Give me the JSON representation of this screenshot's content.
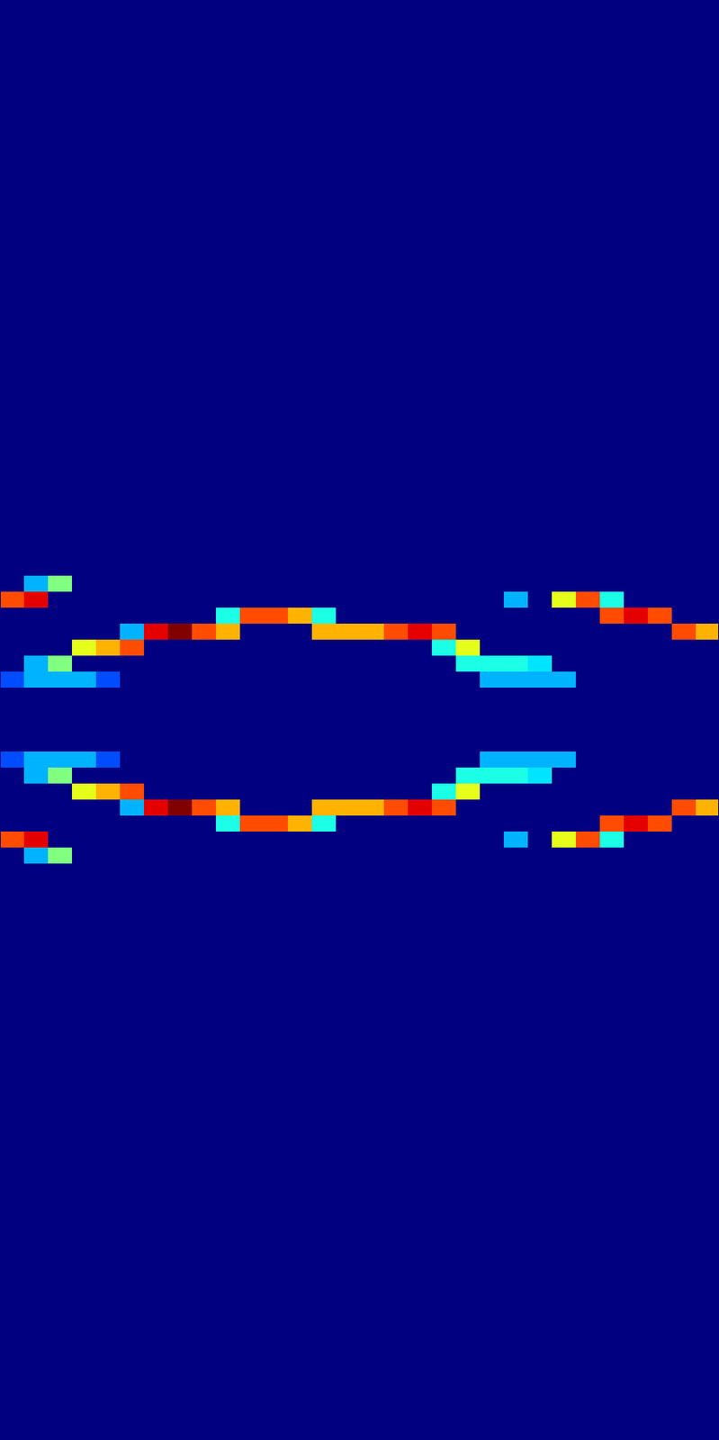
{
  "chart_data": {
    "type": "heatmap",
    "xlim": [
      0,
      899
    ],
    "ylim": [
      0,
      1801
    ],
    "zlim": [
      0,
      1
    ],
    "tick_labels": false,
    "x_bins": [
      0,
      30,
      60,
      90,
      120,
      150,
      180,
      210,
      240,
      270,
      300,
      330,
      360,
      390,
      420,
      450,
      480,
      510,
      540,
      570,
      600,
      630,
      660,
      690,
      720,
      750,
      780,
      810,
      840,
      870,
      899
    ],
    "y_bins": [
      0,
      700,
      720,
      740,
      760,
      780,
      800,
      820,
      840,
      860,
      880,
      900,
      920,
      940,
      960,
      980,
      1000,
      1020,
      1040,
      1060,
      1080,
      1100,
      1801
    ],
    "z": [
      [
        0,
        0,
        0,
        0,
        0,
        0,
        0,
        0,
        0,
        0,
        0,
        0,
        0,
        0,
        0,
        0,
        0,
        0,
        0,
        0,
        0,
        0,
        0,
        0,
        0,
        0,
        0,
        0,
        0,
        0
      ],
      [
        0,
        0,
        0,
        0,
        0,
        0,
        0,
        0,
        0,
        0,
        0,
        0,
        0,
        0,
        0,
        0,
        0,
        0,
        0,
        0,
        0,
        0,
        0,
        0,
        0,
        0,
        0,
        0,
        0,
        0
      ],
      [
        0,
        0.3,
        0.5,
        0,
        0,
        0,
        0,
        0,
        0,
        0,
        0,
        0,
        0,
        0,
        0,
        0,
        0,
        0,
        0,
        0,
        0,
        0,
        0,
        0,
        0,
        0,
        0,
        0,
        0,
        0
      ],
      [
        0.8,
        0.9,
        0,
        0,
        0,
        0,
        0,
        0,
        0,
        0,
        0,
        0,
        0,
        0,
        0,
        0,
        0,
        0,
        0,
        0,
        0,
        0.3,
        0,
        0.6,
        0.8,
        0.4,
        0,
        0,
        0,
        0
      ],
      [
        0,
        0,
        0,
        0,
        0,
        0,
        0,
        0,
        0,
        0.4,
        0.8,
        0.8,
        0.7,
        0.4,
        0,
        0,
        0,
        0,
        0,
        0,
        0,
        0,
        0,
        0,
        0,
        0.8,
        0.9,
        0.8,
        0,
        0
      ],
      [
        0,
        0,
        0,
        0,
        0,
        0.3,
        0.9,
        1,
        0.8,
        0.7,
        0,
        0,
        0,
        0.7,
        0.7,
        0.7,
        0.8,
        0.9,
        0.8,
        0,
        0,
        0,
        0,
        0,
        0,
        0,
        0,
        0,
        0.8,
        0.7
      ],
      [
        0,
        0,
        0,
        0.6,
        0.7,
        0.8,
        0,
        0,
        0,
        0,
        0,
        0,
        0,
        0,
        0,
        0,
        0,
        0,
        0.4,
        0.6,
        0,
        0,
        0,
        0,
        0,
        0,
        0,
        0,
        0,
        0
      ],
      [
        0,
        0.3,
        0.5,
        0,
        0,
        0,
        0,
        0,
        0,
        0,
        0,
        0,
        0,
        0,
        0,
        0,
        0,
        0,
        0,
        0.4,
        0.4,
        0.4,
        0.35,
        0,
        0,
        0,
        0,
        0,
        0,
        0
      ],
      [
        0.2,
        0.3,
        0.3,
        0.3,
        0.2,
        0,
        0,
        0,
        0,
        0,
        0,
        0,
        0,
        0,
        0,
        0,
        0,
        0,
        0,
        0,
        0.3,
        0.3,
        0.3,
        0.3,
        0,
        0,
        0,
        0,
        0,
        0
      ],
      [
        0,
        0,
        0,
        0,
        0,
        0,
        0,
        0,
        0,
        0,
        0,
        0,
        0,
        0,
        0,
        0,
        0,
        0,
        0,
        0,
        0,
        0,
        0,
        0,
        0,
        0,
        0,
        0,
        0,
        0
      ],
      [
        0,
        0,
        0,
        0,
        0,
        0,
        0,
        0,
        0,
        0,
        0,
        0,
        0,
        0,
        0,
        0,
        0,
        0,
        0,
        0,
        0,
        0,
        0,
        0,
        0,
        0,
        0,
        0,
        0,
        0
      ],
      [
        0,
        0,
        0,
        0,
        0,
        0,
        0,
        0,
        0,
        0,
        0,
        0,
        0,
        0,
        0,
        0,
        0,
        0,
        0,
        0,
        0,
        0,
        0,
        0,
        0,
        0,
        0,
        0,
        0,
        0
      ],
      [
        0,
        0,
        0,
        0,
        0,
        0,
        0,
        0,
        0,
        0,
        0,
        0,
        0,
        0,
        0,
        0,
        0,
        0,
        0,
        0,
        0,
        0,
        0,
        0,
        0,
        0,
        0,
        0,
        0,
        0
      ],
      [
        0.2,
        0.3,
        0.3,
        0.3,
        0.2,
        0,
        0,
        0,
        0,
        0,
        0,
        0,
        0,
        0,
        0,
        0,
        0,
        0,
        0,
        0,
        0.3,
        0.3,
        0.3,
        0.3,
        0,
        0,
        0,
        0,
        0,
        0
      ],
      [
        0,
        0.3,
        0.5,
        0,
        0,
        0,
        0,
        0,
        0,
        0,
        0,
        0,
        0,
        0,
        0,
        0,
        0,
        0,
        0,
        0.4,
        0.4,
        0.4,
        0.35,
        0,
        0,
        0,
        0,
        0,
        0,
        0
      ],
      [
        0,
        0,
        0,
        0.6,
        0.7,
        0.8,
        0,
        0,
        0,
        0,
        0,
        0,
        0,
        0,
        0,
        0,
        0,
        0,
        0.4,
        0.6,
        0,
        0,
        0,
        0,
        0,
        0,
        0,
        0,
        0,
        0
      ],
      [
        0,
        0,
        0,
        0,
        0,
        0.3,
        0.9,
        1,
        0.8,
        0.7,
        0,
        0,
        0,
        0.7,
        0.7,
        0.7,
        0.8,
        0.9,
        0.8,
        0,
        0,
        0,
        0,
        0,
        0,
        0,
        0,
        0,
        0.8,
        0.7
      ],
      [
        0,
        0,
        0,
        0,
        0,
        0,
        0,
        0,
        0,
        0.4,
        0.8,
        0.8,
        0.7,
        0.4,
        0,
        0,
        0,
        0,
        0,
        0,
        0,
        0,
        0,
        0,
        0,
        0.8,
        0.9,
        0.8,
        0,
        0
      ],
      [
        0.8,
        0.9,
        0,
        0,
        0,
        0,
        0,
        0,
        0,
        0,
        0,
        0,
        0,
        0,
        0,
        0,
        0,
        0,
        0,
        0,
        0,
        0.3,
        0,
        0.6,
        0.8,
        0.4,
        0,
        0,
        0,
        0
      ],
      [
        0,
        0.3,
        0.5,
        0,
        0,
        0,
        0,
        0,
        0,
        0,
        0,
        0,
        0,
        0,
        0,
        0,
        0,
        0,
        0,
        0,
        0,
        0,
        0,
        0,
        0,
        0,
        0,
        0,
        0,
        0
      ],
      [
        0,
        0,
        0,
        0,
        0,
        0,
        0,
        0,
        0,
        0,
        0,
        0,
        0,
        0,
        0,
        0,
        0,
        0,
        0,
        0,
        0,
        0,
        0,
        0,
        0,
        0,
        0,
        0,
        0,
        0
      ],
      [
        0,
        0,
        0,
        0,
        0,
        0,
        0,
        0,
        0,
        0,
        0,
        0,
        0,
        0,
        0,
        0,
        0,
        0,
        0,
        0,
        0,
        0,
        0,
        0,
        0,
        0,
        0,
        0,
        0,
        0
      ]
    ]
  }
}
